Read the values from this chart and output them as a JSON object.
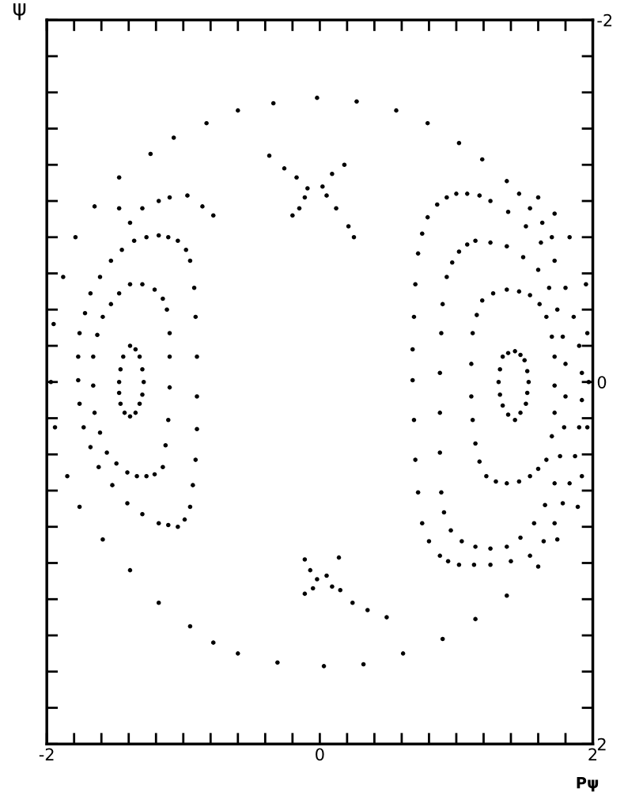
{
  "chart_data": {
    "type": "scatter",
    "marker": "circle",
    "xlabel": "Pψ",
    "ylabel": "ψ",
    "xlim": [
      -2,
      2
    ],
    "ylim": [
      2,
      -2
    ],
    "xticks": [
      {
        "value": -2,
        "label": "-2"
      },
      {
        "value": -1.8,
        "label": null
      },
      {
        "value": -1.6,
        "label": null
      },
      {
        "value": -1.4,
        "label": null
      },
      {
        "value": -1.2,
        "label": null
      },
      {
        "value": -1,
        "label": null
      },
      {
        "value": -0.8,
        "label": null
      },
      {
        "value": -0.6,
        "label": null
      },
      {
        "value": -0.4,
        "label": null
      },
      {
        "value": -0.2,
        "label": null
      },
      0,
      {
        "value": 0.2,
        "label": null
      },
      {
        "value": 0.4,
        "label": null
      },
      {
        "value": 0.6,
        "label": null
      },
      {
        "value": 0.8,
        "label": null
      },
      {
        "value": 1,
        "label": null
      },
      {
        "value": 1.2,
        "label": null
      },
      {
        "value": 1.4,
        "label": null
      },
      {
        "value": 1.6,
        "label": null
      },
      {
        "value": 1.8,
        "label": null
      },
      2
    ],
    "yticks": [
      {
        "value": -2,
        "label": "-2"
      },
      {
        "value": -1.8,
        "label": null
      },
      {
        "value": -1.6,
        "label": null
      },
      {
        "value": -1.4,
        "label": null
      },
      {
        "value": -1.2,
        "label": null
      },
      {
        "value": -1,
        "label": null
      },
      {
        "value": -0.8,
        "label": null
      },
      {
        "value": -0.6,
        "label": null
      },
      {
        "value": -0.4,
        "label": null
      },
      {
        "value": -0.2,
        "label": null
      },
      0,
      {
        "value": 0.2,
        "label": null
      },
      {
        "value": 0.4,
        "label": null
      },
      {
        "value": 0.6,
        "label": null
      },
      {
        "value": 0.8,
        "label": null
      },
      {
        "value": 1,
        "label": null
      },
      {
        "value": 1.2,
        "label": null
      },
      {
        "value": 1.4,
        "label": null
      },
      {
        "value": 1.6,
        "label": null
      },
      {
        "value": 1.8,
        "label": null
      },
      2
    ],
    "grid": false,
    "legend": false,
    "series": [
      {
        "color": "#000000",
        "x": [
          -1.97,
          -1.95,
          -1.88,
          -1.79,
          -1.65,
          -1.47,
          -1.24,
          -1.07,
          -0.83,
          -0.6,
          -0.34,
          -0.02,
          0.27,
          0.56,
          0.79,
          1.02,
          1.19,
          1.6,
          1.72,
          1.83,
          1.95,
          1.96,
          1.97,
          1.96,
          1.92,
          1.89,
          1.74,
          1.6,
          1.37,
          1.14,
          0.9,
          0.61,
          0.32,
          0.03,
          -0.31,
          -0.6,
          -0.78,
          -0.95,
          -1.18,
          -1.39,
          -1.59,
          -1.76,
          -1.85,
          -1.94,
          -0.37,
          -0.26,
          -0.17,
          -0.09,
          -0.11,
          -0.15,
          -0.2,
          0.18,
          0.09,
          0.02,
          0.05,
          0.12,
          0.21,
          0.25,
          -0.07,
          -0.02,
          -0.05,
          -0.11,
          0.05,
          0.09,
          0.15,
          0.24,
          0.35,
          0.49,
          -0.11,
          0.14,
          -1.47,
          -1.3,
          -1.18,
          -1.1,
          -0.97,
          -0.86,
          -0.78,
          -1.39,
          1.37,
          1.46,
          1.54,
          1.63,
          1.7
        ],
        "values": [
          0.0,
          -0.32,
          -0.58,
          -0.8,
          -0.97,
          -1.13,
          -1.26,
          -1.35,
          -1.43,
          -1.5,
          -1.54,
          -1.57,
          -1.55,
          -1.5,
          -1.43,
          -1.32,
          -1.23,
          -1.02,
          -0.93,
          -0.8,
          -0.54,
          -0.27,
          0.0,
          0.25,
          0.52,
          0.69,
          0.87,
          1.02,
          1.18,
          1.31,
          1.42,
          1.5,
          1.56,
          1.57,
          1.55,
          1.5,
          1.44,
          1.35,
          1.22,
          1.04,
          0.87,
          0.69,
          0.52,
          0.25,
          -1.25,
          -1.18,
          -1.13,
          -1.07,
          -1.02,
          -0.96,
          -0.92,
          -1.2,
          -1.15,
          -1.08,
          -1.03,
          -0.96,
          -0.86,
          -0.8,
          1.04,
          1.09,
          1.14,
          1.17,
          1.07,
          1.13,
          1.15,
          1.22,
          1.26,
          1.3,
          0.98,
          0.97,
          -0.96,
          -0.96,
          -1.0,
          -1.02,
          -1.03,
          -0.97,
          -0.92,
          -0.88,
          -1.11,
          -1.04,
          -0.96,
          -0.88,
          -0.8
        ]
      },
      {
        "color": "#000000",
        "x": [
          -1.47,
          -1.46,
          -1.44,
          -1.39,
          -1.35,
          -1.32,
          -1.3,
          -1.29,
          -1.3,
          -1.32,
          -1.35,
          -1.39,
          -1.43,
          -1.46,
          -1.47
        ],
        "values": [
          0.0,
          -0.07,
          -0.14,
          -0.2,
          -0.18,
          -0.14,
          -0.07,
          0.0,
          0.07,
          0.12,
          0.17,
          0.19,
          0.17,
          0.12,
          0.06
        ]
      },
      {
        "color": "#000000",
        "x": [
          -1.39,
          -1.3,
          -1.21,
          -1.15,
          -1.12,
          -1.1,
          -1.1,
          -1.1,
          -1.11,
          -1.13,
          -1.15,
          -1.21,
          -1.27,
          -1.34,
          -1.41,
          -1.49,
          -1.56,
          -1.61,
          -1.65,
          -1.66,
          -1.66,
          -1.63,
          -1.59,
          -1.53,
          -1.47
        ],
        "values": [
          -0.54,
          -0.54,
          -0.51,
          -0.46,
          -0.4,
          -0.27,
          -0.14,
          0.03,
          0.21,
          0.35,
          0.47,
          0.51,
          0.52,
          0.52,
          0.5,
          0.45,
          0.39,
          0.28,
          0.17,
          0.02,
          -0.14,
          -0.26,
          -0.36,
          -0.43,
          -0.49
        ]
      },
      {
        "color": "#000000",
        "x": [
          -1.18,
          -1.11,
          -1.04,
          -0.98,
          -0.95,
          -0.92,
          -0.91,
          -0.9,
          -0.9,
          -0.9,
          -0.91,
          -0.93,
          -0.95,
          -0.99,
          -1.04,
          -1.11,
          -1.18,
          -1.3,
          -1.41,
          -1.52,
          -1.62,
          -1.68,
          -1.73,
          -1.76,
          -1.77,
          -1.77,
          -1.76,
          -1.72,
          -1.68,
          -1.61,
          -1.53,
          -1.45,
          -1.36,
          -1.27
        ],
        "values": [
          -0.81,
          -0.8,
          -0.78,
          -0.73,
          -0.67,
          -0.52,
          -0.36,
          -0.14,
          0.08,
          0.26,
          0.43,
          0.57,
          0.69,
          0.76,
          0.8,
          0.79,
          0.78,
          0.73,
          0.67,
          0.57,
          0.47,
          0.36,
          0.25,
          0.12,
          -0.01,
          -0.14,
          -0.27,
          -0.38,
          -0.49,
          -0.58,
          -0.67,
          -0.73,
          -0.78,
          -0.8
        ]
      },
      {
        "color": "#000000",
        "x": [
          1.31,
          1.32,
          1.34,
          1.38,
          1.43,
          1.47,
          1.5,
          1.52,
          1.53,
          1.52,
          1.51,
          1.47,
          1.43,
          1.38,
          1.34,
          1.32
        ],
        "values": [
          0.0,
          -0.07,
          -0.14,
          -0.16,
          -0.17,
          -0.15,
          -0.12,
          -0.06,
          0.0,
          0.06,
          0.12,
          0.17,
          0.21,
          0.18,
          0.13,
          0.07
        ]
      },
      {
        "color": "#000000",
        "x": [
          1.37,
          1.46,
          1.54,
          1.61,
          1.66,
          1.7,
          1.72,
          1.72,
          1.72,
          1.7,
          1.66,
          1.6,
          1.54,
          1.46,
          1.37,
          1.29,
          1.22,
          1.17,
          1.14,
          1.12,
          1.11,
          1.11,
          1.12,
          1.15,
          1.19,
          1.27
        ],
        "values": [
          -0.51,
          -0.5,
          -0.48,
          -0.43,
          -0.36,
          -0.25,
          -0.14,
          0.02,
          0.17,
          0.3,
          0.43,
          0.48,
          0.52,
          0.55,
          0.56,
          0.55,
          0.52,
          0.44,
          0.34,
          0.21,
          0.08,
          -0.1,
          -0.27,
          -0.37,
          -0.45,
          -0.49
        ]
      },
      {
        "color": "#000000",
        "x": [
          1.14,
          1.25,
          1.37,
          1.49,
          1.6,
          1.68,
          1.74,
          1.78,
          1.8,
          1.8,
          1.79,
          1.76,
          1.72,
          1.65,
          1.57,
          1.47,
          1.37,
          1.25,
          1.14,
          1.04,
          0.96,
          0.91,
          0.89,
          0.88,
          0.88,
          0.88,
          0.89,
          0.9,
          0.93,
          0.97,
          1.02,
          1.08
        ],
        "values": [
          -0.78,
          -0.77,
          -0.75,
          -0.69,
          -0.62,
          -0.52,
          -0.4,
          -0.25,
          -0.1,
          0.08,
          0.25,
          0.41,
          0.56,
          0.68,
          0.78,
          0.86,
          0.91,
          0.92,
          0.91,
          0.88,
          0.82,
          0.72,
          0.61,
          0.39,
          0.17,
          -0.05,
          -0.27,
          -0.43,
          -0.58,
          -0.66,
          -0.72,
          -0.76
        ]
      },
      {
        "color": "#000000",
        "x": [
          1.08,
          1.17,
          1.25,
          1.38,
          1.51,
          1.62,
          1.72,
          1.8,
          1.86,
          1.9,
          1.92,
          1.92,
          1.9,
          1.87,
          1.83,
          1.78,
          1.72,
          1.64,
          1.54,
          1.4,
          1.25,
          1.13,
          1.02,
          0.94,
          0.88,
          0.8,
          0.75,
          0.72,
          0.7,
          0.69,
          0.68,
          0.68,
          0.69,
          0.7,
          0.72,
          0.75,
          0.79,
          0.86,
          0.93,
          1.0
        ],
        "values": [
          -1.04,
          -1.03,
          -1.0,
          -0.94,
          -0.86,
          -0.77,
          -0.67,
          -0.52,
          -0.36,
          -0.2,
          -0.05,
          0.1,
          0.25,
          0.41,
          0.56,
          0.67,
          0.78,
          0.88,
          0.96,
          0.99,
          1.01,
          1.01,
          1.01,
          0.99,
          0.96,
          0.88,
          0.78,
          0.61,
          0.43,
          0.21,
          -0.01,
          -0.18,
          -0.36,
          -0.54,
          -0.71,
          -0.82,
          -0.91,
          -0.98,
          -1.02,
          -1.04
        ]
      }
    ]
  }
}
